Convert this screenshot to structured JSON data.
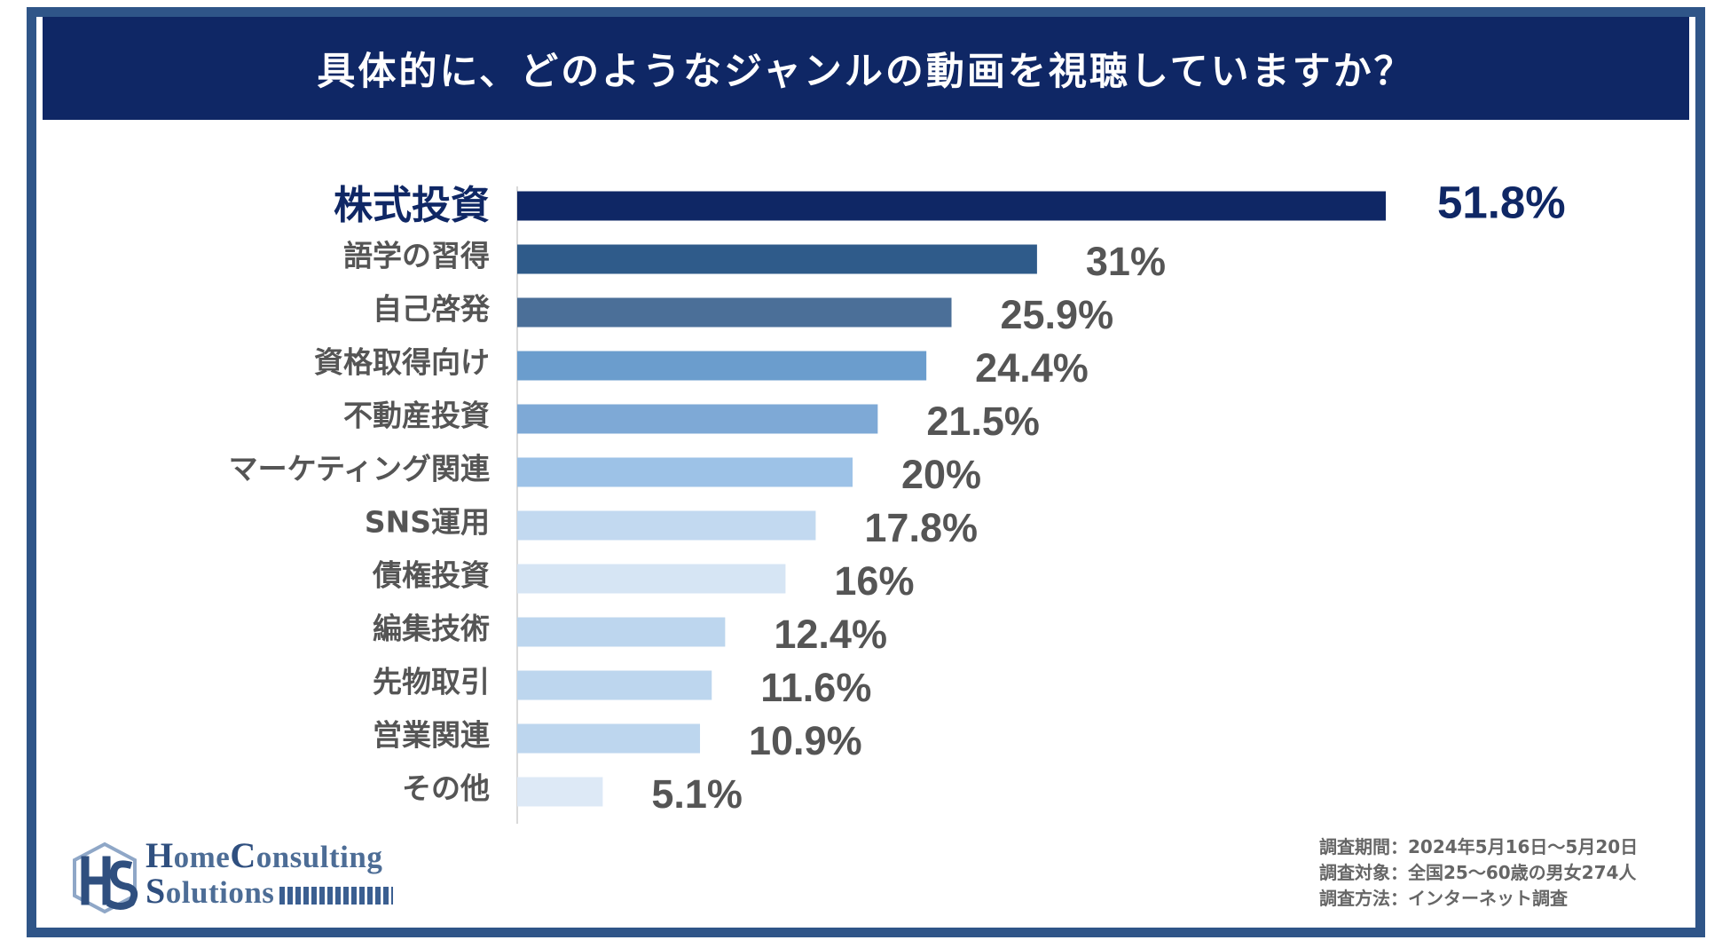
{
  "title": "具体的に、どのようなジャンルの動画を視聴していますか？",
  "chart_data": {
    "type": "bar",
    "orientation": "horizontal",
    "title": "具体的に、どのようなジャンルの動画を視聴していますか？",
    "categories": [
      "株式投資",
      "語学の習得",
      "自己啓発",
      "資格取得向け",
      "不動産投資",
      "マーケティング関連",
      "SNS運用",
      "債権投資",
      "編集技術",
      "先物取引",
      "営業関連",
      "その他"
    ],
    "values": [
      51.8,
      31,
      25.9,
      24.4,
      21.5,
      20,
      17.8,
      16,
      12.4,
      11.6,
      10.9,
      5.1
    ],
    "labels": [
      "51.8%",
      "31%",
      "25.9%",
      "24.4%",
      "21.5%",
      "20%",
      "17.8%",
      "16%",
      "12.4%",
      "11.6%",
      "10.9%",
      "5.1%"
    ],
    "colors": [
      "#0f2765",
      "#2f5b8a",
      "#4b6f98",
      "#6b9dcd",
      "#7ea9d6",
      "#9dc2e7",
      "#c2d9f0",
      "#d6e5f4",
      "#bdd6ee",
      "#bdd6ee",
      "#bdd6ee",
      "#dde9f6"
    ],
    "highlight_index": 0,
    "highlight_color": "#0f2765",
    "label_color": "#555555",
    "xlim": [
      0,
      60
    ]
  },
  "logo": {
    "line1_initial1": "H",
    "line1_rest1": "ome",
    "line1_initial2": "C",
    "line1_rest2": "onsulting",
    "line2_initial": "S",
    "line2_rest": "olutions"
  },
  "survey": {
    "period": "調査期間：2024年5月16日～5月20日",
    "target": "調査対象：全国25～60歳の男女274人",
    "method": "調査方法：インターネット調査"
  }
}
